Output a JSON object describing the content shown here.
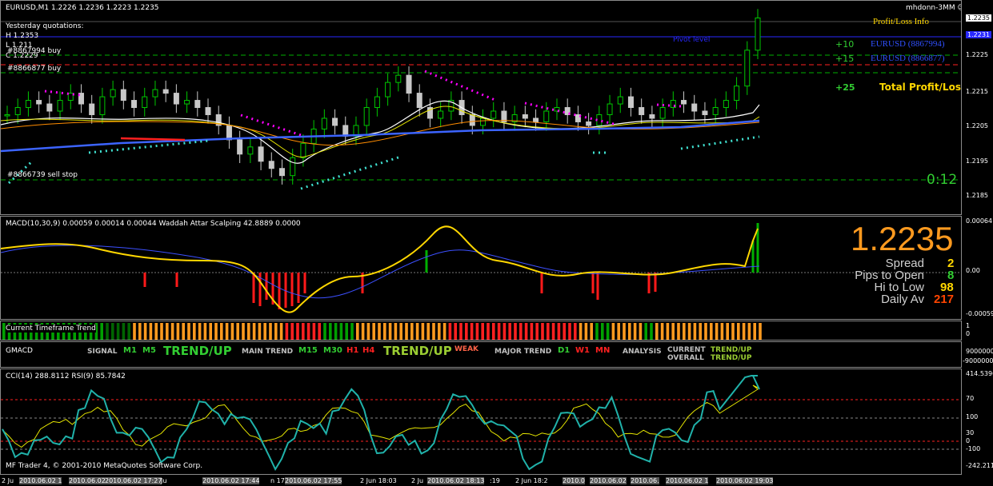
{
  "main": {
    "header": "EURUSD,M1  1.2226 1.2236 1.2223 1.2235",
    "account": "mhdonn-3MM",
    "smiley": "☺",
    "yesterday_title": "Yesterday quotations:",
    "high": "H 1.2353",
    "low": "L 1.211",
    "close": "C 1.2229",
    "order1": "#8867994 buy",
    "order2": "#8866877 buy",
    "order3": "#8866739 sell stop",
    "pivot_label": "Pivot level",
    "pl_title": "Profit/Loss Info",
    "pl_rows": [
      {
        "value": "+10",
        "label": "EURUSD (8867994)"
      },
      {
        "value": "+15",
        "label": "EURUSD (8866877)"
      }
    ],
    "total_value": "+25",
    "total_label": "Total Profit/Loss",
    "timer": "0:12",
    "price_ticks": [
      "1.2235",
      "1.2225",
      "1.2215",
      "1.2205",
      "1.2195",
      "1.2185"
    ],
    "current_price_box": "1.2235",
    "pivot_box": "1.2231"
  },
  "info_panel": {
    "price": "1.2235",
    "rows": [
      {
        "label": "Spread",
        "value": "2",
        "color": "#ffd700"
      },
      {
        "label": "Pips to Open",
        "value": "8",
        "color": "#32cd32"
      },
      {
        "label": "Hi to Low",
        "value": "98",
        "color": "#ffd700"
      },
      {
        "label": "Daily Av",
        "value": "217",
        "color": "#ff4500"
      }
    ]
  },
  "macd": {
    "header": "MACD(10,30,9) 0.00059 0.00014 0.00044  Waddah Attar Scalping 42.8889 0.0000",
    "ticks": [
      "0.00064",
      "0.00",
      "-0.00059"
    ]
  },
  "trend": {
    "header": "Current Timeframe Trend",
    "ticks": [
      "1",
      "0"
    ]
  },
  "gmacd": {
    "header": "GMACD",
    "ticks": [
      "9000000",
      "-9000000"
    ],
    "signal": "SIGNAL",
    "m1": "M1",
    "m5": "M5",
    "trend1": "TREND/UP",
    "main_trend": "MAIN TREND",
    "m15": "M15",
    "m30": "M30",
    "h1": "H1",
    "h4": "H4",
    "trend2": "TREND/UP",
    "weak": "WEAK",
    "major_trend": "MAJOR TREND",
    "d1": "D1",
    "w1": "W1",
    "mn": "MN",
    "analysis": "ANALYSIS",
    "current": "CURRENT",
    "overall": "OVERALL",
    "trend3": "TREND/UP",
    "trend4": "TREND/UP"
  },
  "cci": {
    "header": "CCI(14) 288.8112  RSI(9) 85.7842",
    "ticks": [
      "414.5396",
      "70",
      "100",
      "30",
      "0",
      "-100",
      "-242.2118"
    ],
    "copyright": "MF Trader 4, © 2001-2010 MetaQuotes Software Corp."
  },
  "time_axis": [
    "2 Ju",
    "2010.06.02 1",
    "2010.06.02",
    "2010.06.02 17:27",
    "Ju",
    "2010.06.02 17:44",
    "n 17",
    "2010.06.02 17:55",
    "2 Jun 18:03",
    "2 Ju",
    "2010.06.02 18:13",
    ":19",
    "2 Jun 18:2",
    "2010.0",
    "2010.06.02",
    "2010.06.",
    "2010.06.02 1",
    "2010.06.02 19:03"
  ],
  "colors": {
    "bull": "#00c800",
    "bear": "#c8c8c8",
    "ma_blue": "#3c64ff",
    "ma_red": "#ff2020",
    "ma_yellow": "#e6e600",
    "ma_white": "#ffffff",
    "ma_orange": "#ff8c00",
    "psar_magenta": "#ff00ff",
    "psar_cyan": "#40e0d0",
    "accent_orange": "#ff9a1f"
  },
  "chart_data": {
    "type": "line",
    "title": "EURUSD,M1",
    "ylim": [
      1.218,
      1.2238
    ],
    "series": [
      {
        "name": "EURUSD",
        "values": [
          1.2208,
          1.221,
          1.2212,
          1.2211,
          1.2209,
          1.2212,
          1.2214,
          1.2211,
          1.2208,
          1.2213,
          1.2215,
          1.2212,
          1.221,
          1.2213,
          1.2215,
          1.2214,
          1.2211,
          1.2212,
          1.221,
          1.2208,
          1.2205,
          1.2201,
          1.2197,
          1.2199,
          1.2195,
          1.2193,
          1.2191,
          1.2196,
          1.22,
          1.2204,
          1.2207,
          1.2205,
          1.2202,
          1.2205,
          1.221,
          1.2213,
          1.2217,
          1.2219,
          1.2214,
          1.221,
          1.2207,
          1.2209,
          1.2212,
          1.2208,
          1.2205,
          1.2207,
          1.2209,
          1.2206,
          1.2208,
          1.2207,
          1.2206,
          1.2209,
          1.221,
          1.2208,
          1.2206,
          1.2205,
          1.2208,
          1.2211,
          1.2213,
          1.221,
          1.2208,
          1.2207,
          1.221,
          1.2212,
          1.2211,
          1.2209,
          1.2208,
          1.221,
          1.2212,
          1.2216,
          1.2226,
          1.2235
        ]
      }
    ]
  }
}
